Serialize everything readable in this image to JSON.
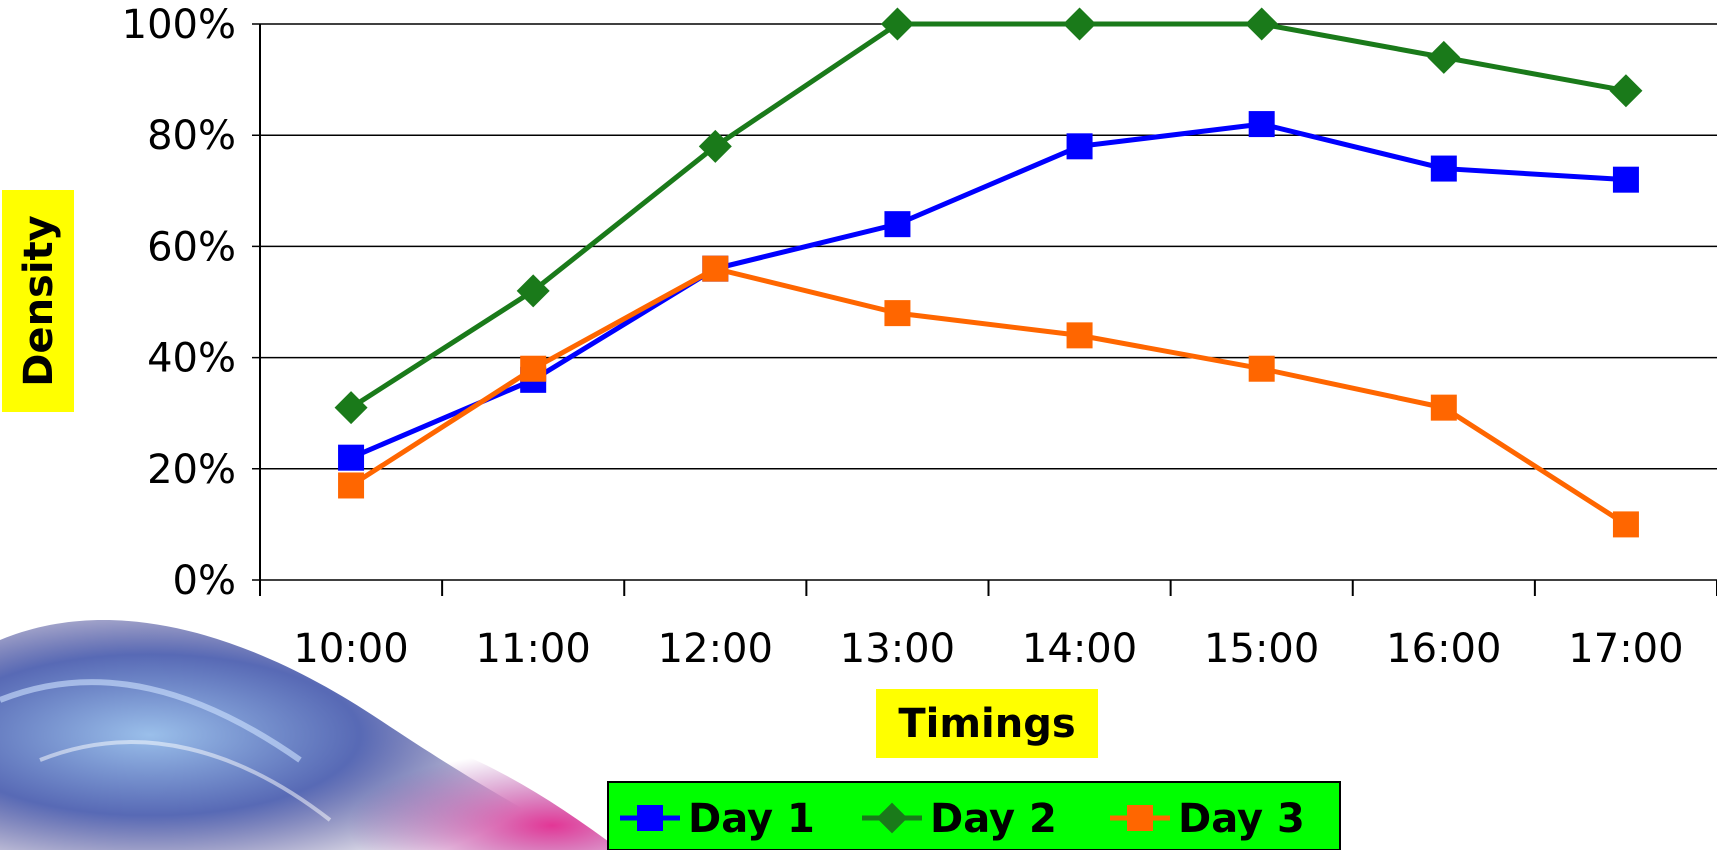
{
  "chart_data": {
    "type": "line",
    "xlabel": "Timings",
    "ylabel": "Density",
    "categories": [
      "10:00",
      "11:00",
      "12:00",
      "13:00",
      "14:00",
      "15:00",
      "16:00",
      "17:00"
    ],
    "y_tick_labels": [
      "0%",
      "20%",
      "40%",
      "60%",
      "80%",
      "100%"
    ],
    "ylim": [
      0,
      100
    ],
    "grid": "horizontal",
    "legend_position": "bottom",
    "series": [
      {
        "name": "Day 1",
        "color": "#0000ff",
        "marker": "square",
        "values": [
          22,
          36,
          56,
          64,
          78,
          82,
          74,
          72
        ]
      },
      {
        "name": "Day 2",
        "color": "#1a7a1a",
        "marker": "diamond",
        "values": [
          31,
          52,
          78,
          100,
          100,
          100,
          94,
          88
        ]
      },
      {
        "name": "Day 3",
        "color": "#ff6600",
        "marker": "square",
        "values": [
          17,
          38,
          56,
          48,
          44,
          38,
          31,
          10
        ]
      }
    ],
    "colors": {
      "axis_title_background": "#ffff00",
      "legend_background": "#00ff00"
    }
  }
}
